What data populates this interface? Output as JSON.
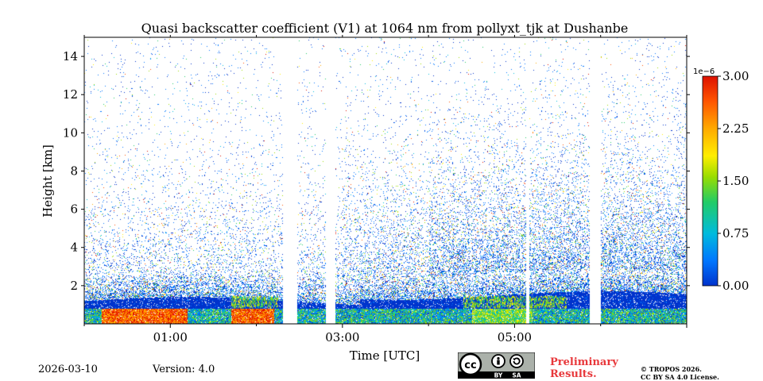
{
  "chart_data": {
    "type": "heatmap",
    "title": "Quasi backscatter coefficient (V1) at 1064 nm from pollyxt_tjk at Dushanbe",
    "xlabel": "Time [UTC]",
    "ylabel": "Height [km]",
    "x_ticks": [
      "01:00",
      "03:00",
      "05:00"
    ],
    "y_ticks": [
      "2",
      "4",
      "6",
      "8",
      "10",
      "12",
      "14"
    ],
    "ylim": [
      0,
      15
    ],
    "colorbar": {
      "scale_label": "1e−6",
      "ticks": [
        "0.00",
        "0.75",
        "1.50",
        "2.25",
        "3.00"
      ],
      "range": [
        0,
        3.0
      ],
      "colormap": [
        "#0033cc",
        "#0077ff",
        "#00bbdd",
        "#22cc66",
        "#99dd00",
        "#ffee00",
        "#ffaa00",
        "#ff5500",
        "#dd1100"
      ]
    },
    "layers": {
      "dense_aerosol_top_km": 1.0,
      "low_level_high_signal_km": [
        0,
        0.8
      ],
      "gap_intervals_utc": [
        "02:18-02:28",
        "02:48-02:55",
        "05:08-05:10",
        "05:52-06:00"
      ]
    }
  },
  "footer": {
    "date": "2026-03-10",
    "version": "Version: 4.0",
    "license_badge": [
      "cc",
      "BY",
      "SA"
    ],
    "preliminary_line1": "Preliminary",
    "preliminary_line2": "Results.",
    "copyright_line1": "© TROPOS 2026.",
    "copyright_line2": "CC BY SA 4.0 License."
  }
}
